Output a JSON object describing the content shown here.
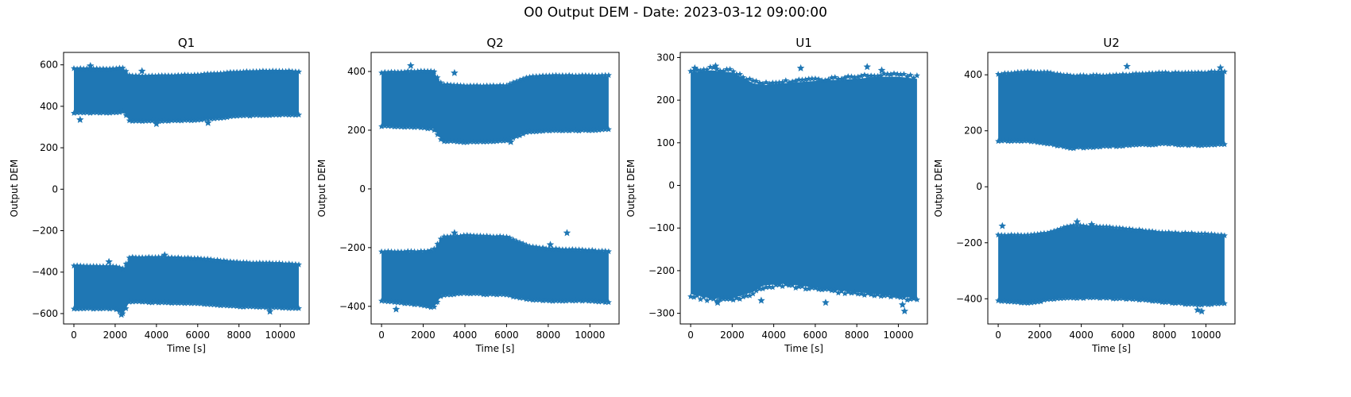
{
  "figure": {
    "title": "O0 Output DEM - Date: 2023-03-12 09:00:00"
  },
  "colors": {
    "series": "#1f77b4",
    "axes": "#000000",
    "background": "#ffffff"
  },
  "chart_data": [
    {
      "type": "scatter",
      "title": "Q1",
      "xlabel": "Time [s]",
      "ylabel": "Output DEM",
      "xlim": [
        -500,
        11400
      ],
      "ylim": [
        -650,
        660
      ],
      "xticks": [
        0,
        2000,
        4000,
        6000,
        8000,
        10000
      ],
      "yticks": [
        -600,
        -400,
        -200,
        0,
        200,
        400,
        600
      ],
      "ytick_labels": [
        "−600",
        "−400",
        "−200",
        "0",
        "200",
        "400",
        "600"
      ],
      "marker": "star",
      "grid": false,
      "bands": [
        {
          "x": [
            0,
            2000,
            2400,
            2700,
            4000,
            6000,
            8000,
            10000,
            10900
          ],
          "upper": [
            580,
            580,
            585,
            545,
            545,
            550,
            565,
            570,
            565
          ],
          "lower": [
            370,
            370,
            375,
            330,
            330,
            335,
            355,
            360,
            360
          ]
        },
        {
          "x": [
            0,
            2000,
            2400,
            2700,
            4000,
            6000,
            8000,
            10000,
            10900
          ],
          "upper": [
            -370,
            -375,
            -385,
            -330,
            -330,
            -335,
            -355,
            -360,
            -365
          ],
          "lower": [
            -575,
            -575,
            -600,
            -540,
            -545,
            -550,
            -565,
            -570,
            -575
          ]
        }
      ],
      "outliers": [
        [
          800,
          595
        ],
        [
          3300,
          570
        ],
        [
          300,
          335
        ],
        [
          4000,
          315
        ],
        [
          6500,
          320
        ],
        [
          1700,
          -350
        ],
        [
          4400,
          -318
        ],
        [
          2300,
          -605
        ],
        [
          9500,
          -590
        ]
      ]
    },
    {
      "type": "scatter",
      "title": "Q2",
      "xlabel": "Time [s]",
      "ylabel": "Output DEM",
      "xlim": [
        -500,
        11400
      ],
      "ylim": [
        -460,
        465
      ],
      "xticks": [
        0,
        2000,
        4000,
        6000,
        8000,
        10000
      ],
      "yticks": [
        -400,
        -200,
        0,
        200,
        400
      ],
      "ytick_labels": [
        "−400",
        "−200",
        "0",
        "200",
        "400"
      ],
      "marker": "star",
      "grid": false,
      "bands": [
        {
          "x": [
            0,
            2000,
            2500,
            2900,
            4000,
            6000,
            7000,
            8000,
            10000,
            10900
          ],
          "upper": [
            395,
            400,
            400,
            355,
            350,
            350,
            380,
            385,
            385,
            385
          ],
          "lower": [
            215,
            210,
            205,
            165,
            160,
            165,
            195,
            200,
            200,
            205
          ]
        },
        {
          "x": [
            0,
            2000,
            2500,
            2900,
            4000,
            6000,
            7000,
            8000,
            10000,
            10900
          ],
          "upper": [
            -215,
            -215,
            -210,
            -165,
            -160,
            -165,
            -195,
            -205,
            -210,
            -215
          ],
          "lower": [
            -380,
            -395,
            -405,
            -360,
            -355,
            -360,
            -375,
            -380,
            -380,
            -385
          ]
        }
      ],
      "outliers": [
        [
          1400,
          420
        ],
        [
          3500,
          395
        ],
        [
          6200,
          160
        ],
        [
          3500,
          -150
        ],
        [
          8900,
          -150
        ],
        [
          8100,
          -190
        ],
        [
          2600,
          -385
        ],
        [
          700,
          -410
        ]
      ]
    },
    {
      "type": "scatter",
      "title": "U1",
      "xlabel": "Time [s]",
      "ylabel": "Output DEM",
      "xlim": [
        -500,
        11400
      ],
      "ylim": [
        -325,
        312
      ],
      "xticks": [
        0,
        2000,
        4000,
        6000,
        8000,
        10000
      ],
      "yticks": [
        -300,
        -200,
        -100,
        0,
        100,
        200,
        300
      ],
      "ytick_labels": [
        "−300",
        "−200",
        "−100",
        "0",
        "100",
        "200",
        "300"
      ],
      "marker": "star",
      "grid": false,
      "bands": [
        {
          "x": [
            0,
            1000,
            2000,
            3000,
            3500,
            4500,
            6000,
            8000,
            9000,
            10000,
            10900
          ],
          "upper": [
            265,
            270,
            265,
            240,
            235,
            240,
            245,
            250,
            255,
            255,
            250
          ],
          "lower": [
            -255,
            -265,
            -265,
            -250,
            -235,
            -230,
            -240,
            -250,
            -255,
            -260,
            -265
          ]
        }
      ],
      "outliers": [
        [
          200,
          275
        ],
        [
          1200,
          280
        ],
        [
          5300,
          275
        ],
        [
          8500,
          278
        ],
        [
          9200,
          270
        ],
        [
          1300,
          -275
        ],
        [
          3400,
          -270
        ],
        [
          6500,
          -275
        ],
        [
          10200,
          -280
        ],
        [
          10300,
          -295
        ]
      ]
    },
    {
      "type": "scatter",
      "title": "U2",
      "xlabel": "Time [s]",
      "ylabel": "Output DEM",
      "xlim": [
        -500,
        11400
      ],
      "ylim": [
        -490,
        480
      ],
      "xticks": [
        0,
        2000,
        4000,
        6000,
        8000,
        10000
      ],
      "yticks": [
        -400,
        -200,
        0,
        200,
        400
      ],
      "ytick_labels": [
        "−400",
        "−200",
        "0",
        "200",
        "400"
      ],
      "marker": "star",
      "grid": false,
      "bands": [
        {
          "x": [
            0,
            1500,
            2500,
            3500,
            5000,
            6500,
            8000,
            9500,
            10900
          ],
          "upper": [
            400,
            410,
            405,
            395,
            395,
            400,
            405,
            405,
            410
          ],
          "lower": [
            165,
            165,
            155,
            140,
            145,
            150,
            155,
            150,
            155
          ]
        },
        {
          "x": [
            0,
            1500,
            2500,
            3500,
            5000,
            6500,
            8000,
            9500,
            10900
          ],
          "upper": [
            -175,
            -175,
            -165,
            -140,
            -145,
            -155,
            -165,
            -170,
            -175
          ],
          "lower": [
            -405,
            -415,
            -400,
            -395,
            -395,
            -400,
            -410,
            -420,
            -415
          ]
        }
      ],
      "outliers": [
        [
          6200,
          430
        ],
        [
          10700,
          425
        ],
        [
          200,
          -140
        ],
        [
          3800,
          -125
        ],
        [
          4500,
          -135
        ],
        [
          9600,
          -440
        ],
        [
          9800,
          -445
        ]
      ]
    }
  ]
}
